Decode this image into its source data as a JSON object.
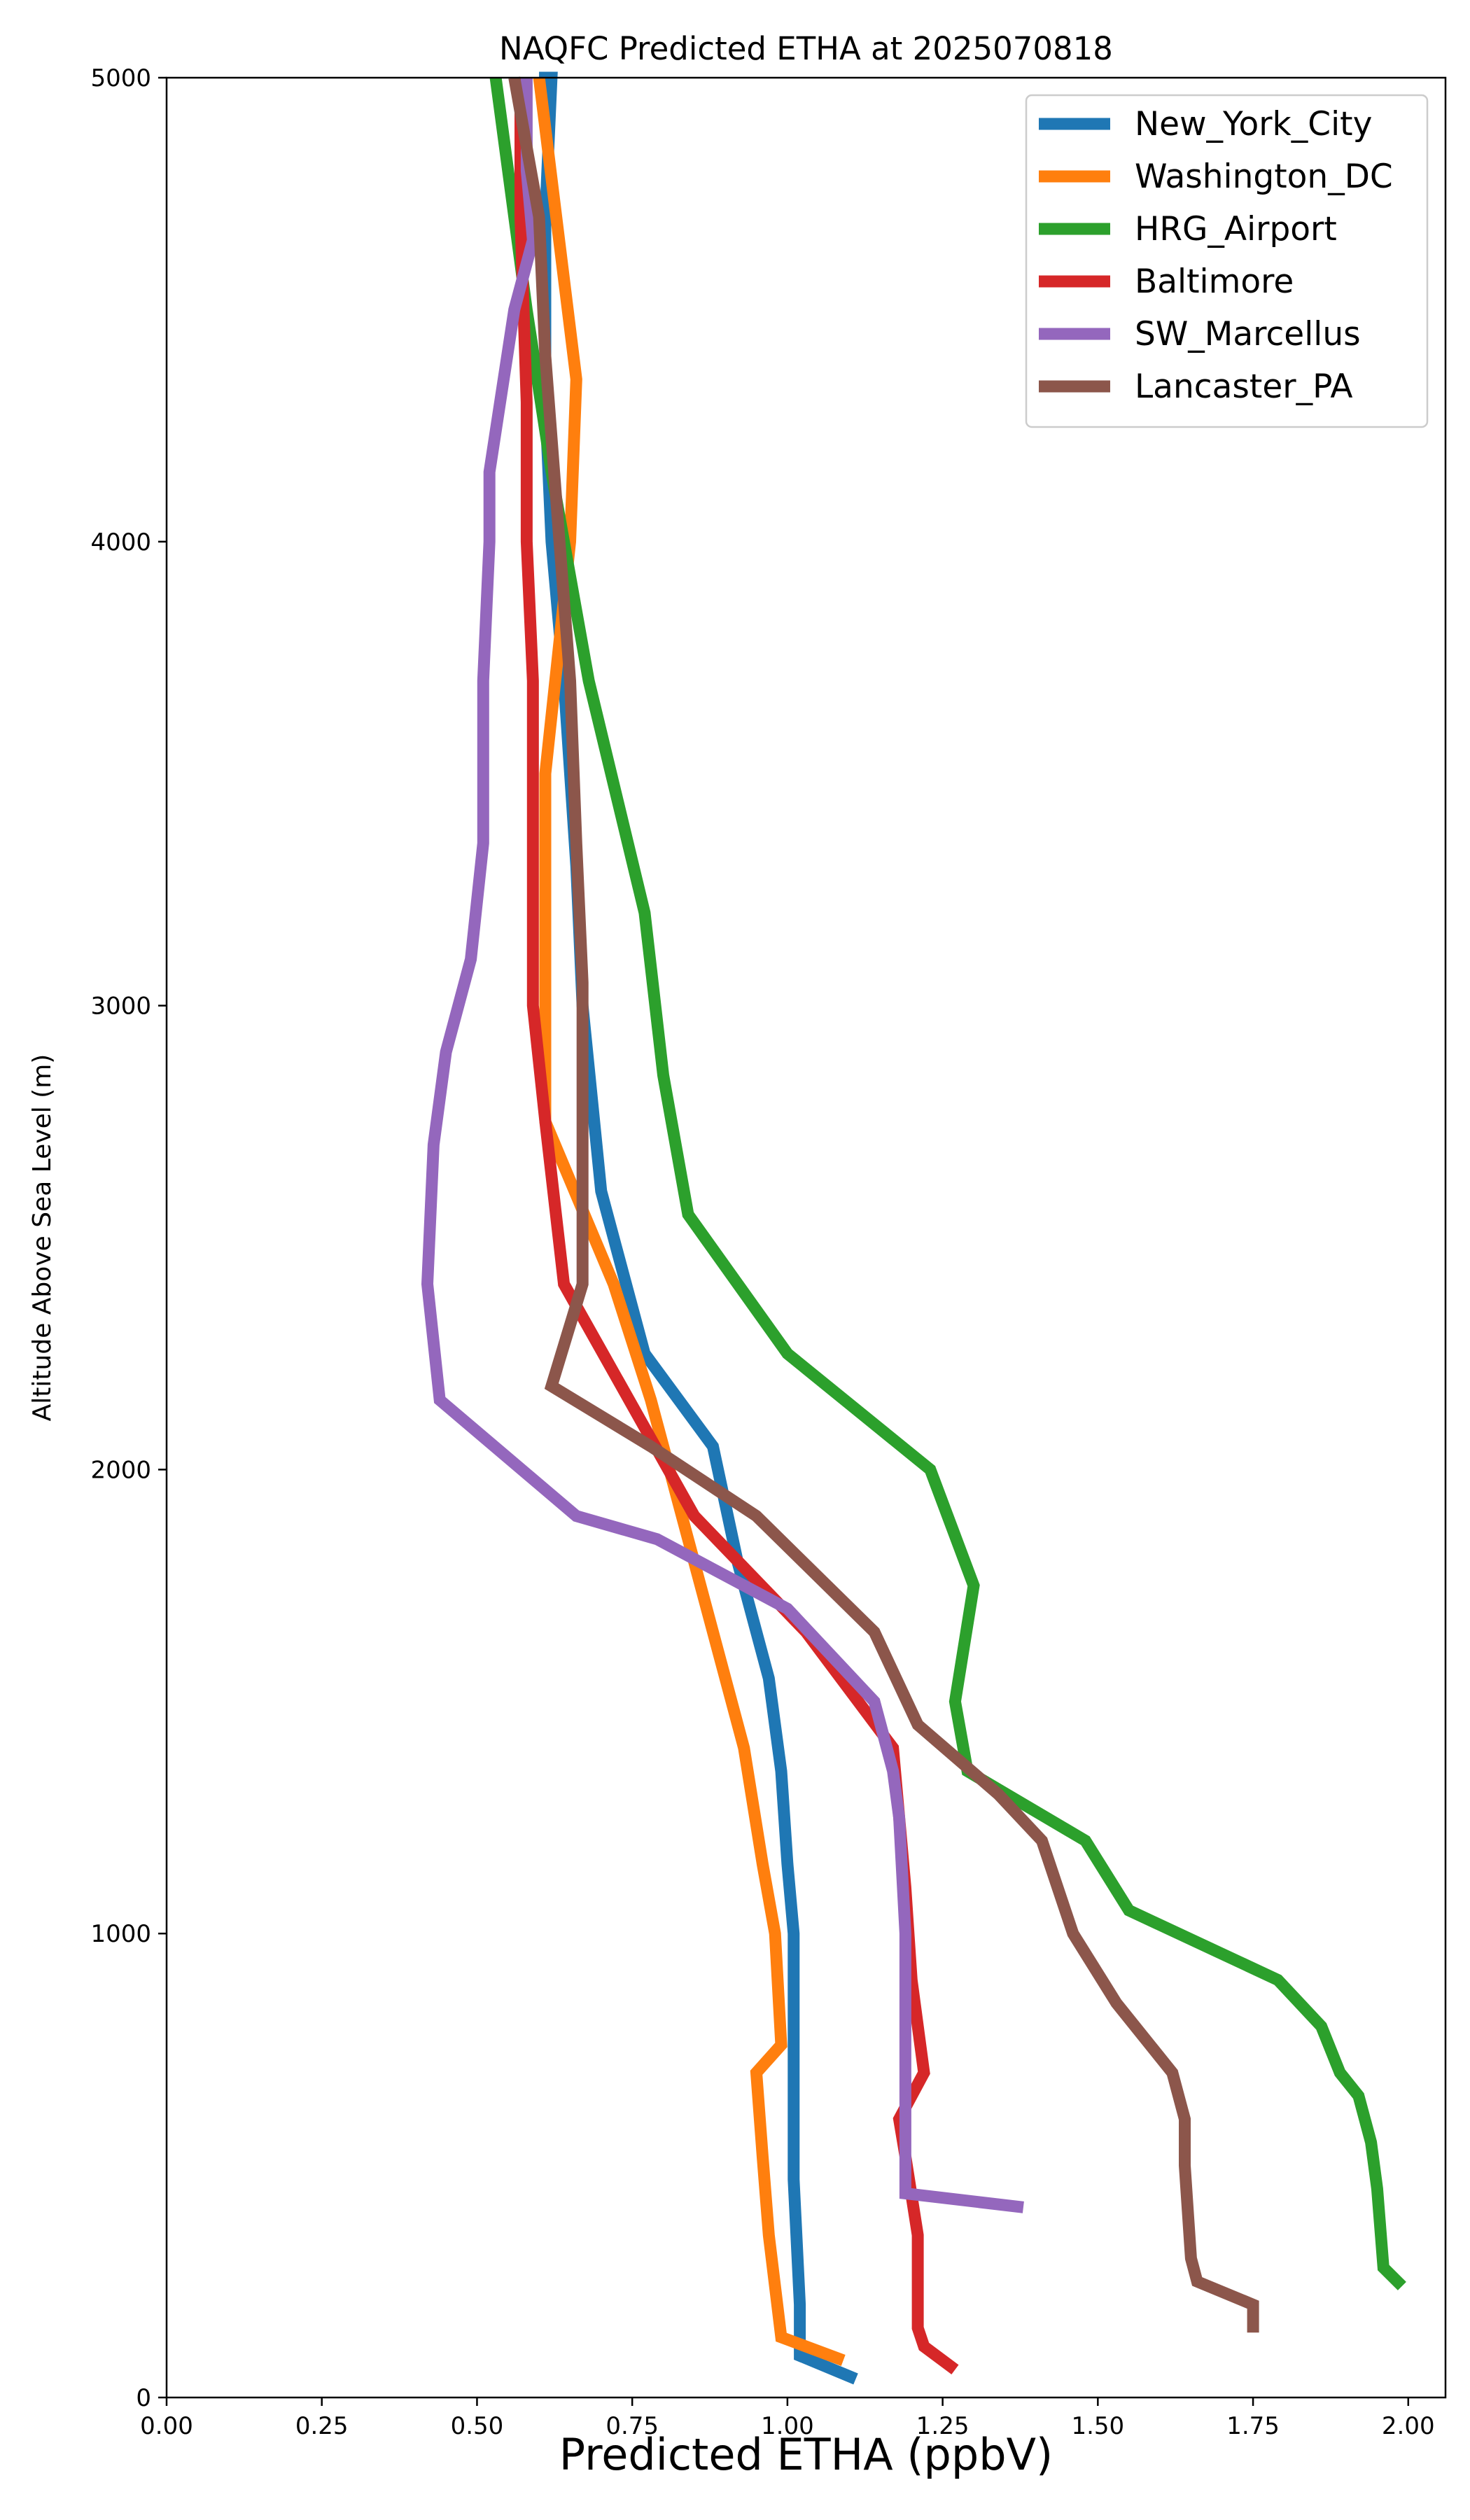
{
  "chart_data": {
    "type": "line",
    "title": "NAQFC Predicted ETHA at 2025070818",
    "xlabel": "Predicted ETHA (ppbV)",
    "ylabel": "Altitude Above Sea Level (m)",
    "xlim": [
      0,
      2.06
    ],
    "ylim": [
      0,
      5000
    ],
    "xticks": [
      0,
      0.25,
      0.5,
      0.75,
      1.0,
      1.25,
      1.5,
      1.75,
      2.0
    ],
    "xtick_labels": [
      "0.00",
      "0.25",
      "0.50",
      "0.75",
      "1.00",
      "1.25",
      "1.50",
      "1.75",
      "2.00"
    ],
    "yticks": [
      0,
      1000,
      2000,
      3000,
      4000,
      5000
    ],
    "ytick_labels": [
      "0",
      "1000",
      "2000",
      "3000",
      "4000",
      "5000"
    ],
    "grid": false,
    "legend_position": "top-right",
    "series": [
      {
        "name": "New_York_City",
        "color": "#1f77b4",
        "x": [
          1.11,
          1.02,
          1.02,
          1.01,
          1.01,
          1.01,
          1.0,
          0.99,
          0.97,
          0.92,
          0.88,
          0.77,
          0.7,
          0.67,
          0.66,
          0.64,
          0.62,
          0.61,
          0.61,
          0.62,
          0.6
        ],
        "y": [
          40,
          90,
          200,
          470,
          700,
          1000,
          1150,
          1350,
          1550,
          1800,
          2050,
          2250,
          2600,
          3000,
          3300,
          3700,
          4000,
          4300,
          4700,
          5000,
          5000
        ]
      },
      {
        "name": "Washington_DC",
        "color": "#ff7f0e",
        "x": [
          1.09,
          0.99,
          0.97,
          0.96,
          0.95,
          0.99,
          0.98,
          0.96,
          0.93,
          0.88,
          0.83,
          0.78,
          0.72,
          0.61,
          0.61,
          0.61,
          0.65,
          0.66,
          0.6
        ],
        "y": [
          80,
          130,
          350,
          520,
          700,
          760,
          1000,
          1150,
          1400,
          1650,
          1900,
          2150,
          2400,
          2750,
          3050,
          3500,
          4000,
          4350,
          5000
        ]
      },
      {
        "name": "HRG_Airport",
        "color": "#2ca02c",
        "x": [
          1.99,
          1.96,
          1.95,
          1.94,
          1.92,
          1.89,
          1.86,
          1.79,
          1.55,
          1.48,
          1.29,
          1.27,
          1.3,
          1.23,
          1.0,
          0.84,
          0.8,
          0.77,
          0.68,
          0.62,
          0.58,
          0.55,
          0.53
        ],
        "y": [
          240,
          280,
          450,
          550,
          650,
          700,
          800,
          900,
          1050,
          1200,
          1350,
          1500,
          1750,
          2000,
          2250,
          2550,
          2850,
          3200,
          3700,
          4150,
          4500,
          4800,
          5000
        ]
      },
      {
        "name": "Baltimore",
        "color": "#d62728",
        "x": [
          1.27,
          1.22,
          1.21,
          1.21,
          1.19,
          1.18,
          1.22,
          1.2,
          1.19,
          1.17,
          1.03,
          0.85,
          0.64,
          0.61,
          0.59,
          0.59,
          0.59,
          0.58,
          0.58,
          0.57,
          0.57
        ],
        "y": [
          60,
          110,
          150,
          350,
          520,
          600,
          700,
          900,
          1100,
          1400,
          1650,
          1900,
          2400,
          2750,
          3000,
          3300,
          3700,
          4000,
          4300,
          4700,
          5000
        ]
      },
      {
        "name": "SW_Marcellus",
        "color": "#9467bd",
        "x": [
          1.38,
          1.19,
          1.19,
          1.19,
          1.19,
          1.18,
          1.17,
          1.14,
          1.0,
          0.79,
          0.66,
          0.44,
          0.42,
          0.43,
          0.45,
          0.49,
          0.51,
          0.51,
          0.52,
          0.52,
          0.56,
          0.59,
          0.58,
          0.58
        ],
        "y": [
          410,
          440,
          600,
          800,
          1000,
          1250,
          1350,
          1500,
          1700,
          1850,
          1900,
          2150,
          2400,
          2700,
          2900,
          3100,
          3350,
          3700,
          4000,
          4150,
          4500,
          4650,
          4800,
          5000
        ]
      },
      {
        "name": "Lancaster_PA",
        "color": "#8c564b",
        "x": [
          1.75,
          1.75,
          1.66,
          1.65,
          1.64,
          1.64,
          1.62,
          1.53,
          1.46,
          1.41,
          1.34,
          1.21,
          1.14,
          0.95,
          0.78,
          0.62,
          0.67,
          0.67,
          0.67,
          0.66,
          0.65,
          0.63,
          0.61,
          0.6,
          0.58,
          0.56
        ],
        "y": [
          140,
          200,
          250,
          300,
          500,
          600,
          700,
          850,
          1000,
          1200,
          1300,
          1450,
          1650,
          1900,
          2050,
          2180,
          2400,
          2700,
          3050,
          3350,
          3700,
          4050,
          4400,
          4700,
          4850,
          5000
        ]
      }
    ]
  }
}
